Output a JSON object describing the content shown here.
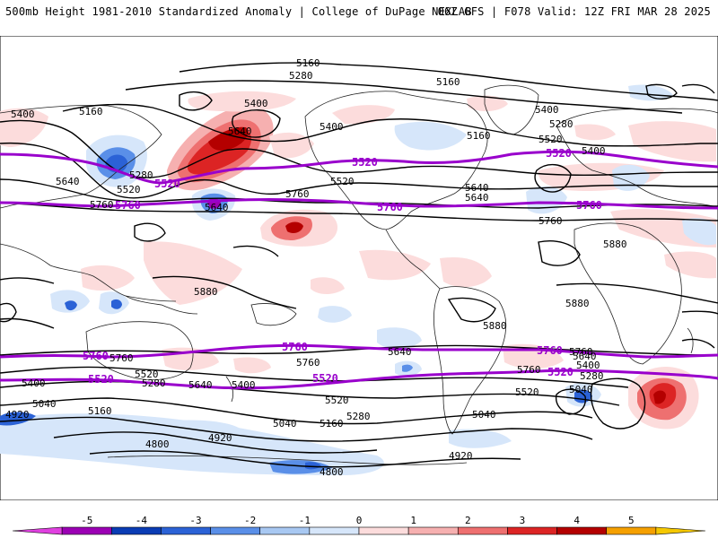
{
  "header": {
    "left": "500mb Height 1981-2010 Standardized Anomaly | College of DuPage NEXLAB",
    "right": "06Z GFS | F078 Valid: 12Z FRI MAR 28 2025"
  },
  "contour_labels": [
    {
      "text": "5160"
    },
    {
      "text": "5280"
    },
    {
      "text": "5160"
    },
    {
      "text": "5400"
    },
    {
      "text": "5160"
    },
    {
      "text": "5400"
    },
    {
      "text": "5280"
    },
    {
      "text": "5520"
    },
    {
      "text": "5400"
    },
    {
      "text": "5400"
    },
    {
      "text": "5640"
    },
    {
      "text": "5280"
    },
    {
      "text": "5520"
    },
    {
      "text": "5640"
    },
    {
      "text": "5520"
    },
    {
      "text": "5760"
    },
    {
      "text": "5760"
    },
    {
      "text": "5640"
    },
    {
      "text": "5160"
    },
    {
      "text": "5640"
    },
    {
      "text": "5640"
    },
    {
      "text": "5760"
    },
    {
      "text": "5880"
    },
    {
      "text": "5880"
    },
    {
      "text": "5880"
    },
    {
      "text": "5880"
    },
    {
      "text": "5640"
    },
    {
      "text": "5760"
    },
    {
      "text": "5760"
    },
    {
      "text": "5760"
    },
    {
      "text": "5520"
    },
    {
      "text": "5400"
    },
    {
      "text": "5280"
    },
    {
      "text": "5640"
    },
    {
      "text": "5400"
    },
    {
      "text": "5520"
    },
    {
      "text": "5280"
    },
    {
      "text": "5160"
    },
    {
      "text": "5040"
    },
    {
      "text": "5040"
    },
    {
      "text": "5160"
    },
    {
      "text": "5520"
    },
    {
      "text": "5760"
    },
    {
      "text": "5640"
    },
    {
      "text": "5400"
    },
    {
      "text": "5280"
    },
    {
      "text": "5040"
    },
    {
      "text": "5040"
    },
    {
      "text": "4920"
    },
    {
      "text": "4920"
    },
    {
      "text": "4800"
    },
    {
      "text": "4920"
    },
    {
      "text": "4800"
    },
    {
      "text": "5400"
    }
  ],
  "purple_labels": [
    {
      "text": "5520"
    },
    {
      "text": "5520"
    },
    {
      "text": "5520"
    },
    {
      "text": "5760"
    },
    {
      "text": "5760"
    },
    {
      "text": "5760"
    },
    {
      "text": "5760"
    },
    {
      "text": "5760"
    },
    {
      "text": "5760"
    },
    {
      "text": "5520"
    },
    {
      "text": "5520"
    },
    {
      "text": "5520"
    }
  ],
  "colorbar": {
    "ticks": [
      "-5",
      "-4",
      "-3",
      "-2",
      "-1",
      "0",
      "1",
      "2",
      "3",
      "4",
      "5"
    ],
    "colors": [
      "#e040e0",
      "#9b00b4",
      "#0a3cb4",
      "#2b62d6",
      "#5a8fe8",
      "#a8c8f2",
      "#d6e6fa",
      "#fcdcdc",
      "#f6b0b0",
      "#ee7070",
      "#dc2424",
      "#b40000",
      "#f5a000",
      "#f5c800"
    ]
  }
}
